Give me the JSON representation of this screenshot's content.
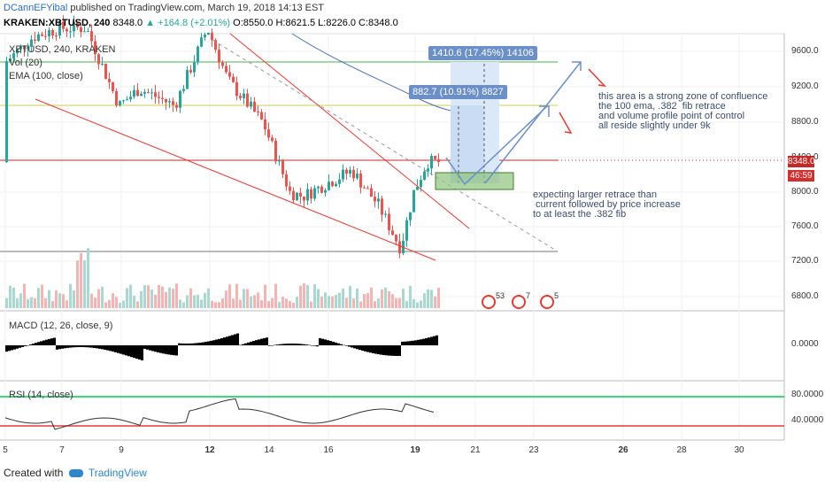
{
  "header": {
    "author": "DCannEFYibal",
    "published_text": "published on TradingView.com, March 19, 2018 14:13 EST",
    "symbol_line": "KRAKEN:XBTUSD, 240",
    "last": "8348.0",
    "change": "▲ +164.8 (+2.01%)",
    "ohlc": "O:8550.0 H:8621.5 L:8226.0 C:8348.0"
  },
  "panes": {
    "main_title": "XBTUSD, 240, KRAKEN",
    "vol_label": "Vol (20)",
    "ema_label": "EMA (100, close)",
    "macd_label": "MACD (12, 26, close, 9)",
    "rsi_label": "RSI (14, close)"
  },
  "price_axis": [
    "9600.0",
    "9200.0",
    "8800.0",
    "8400.0",
    "8000.0",
    "7600.0",
    "7200.0",
    "6800.0"
  ],
  "macd_axis": [
    "0.0000"
  ],
  "rsi_axis": [
    "80.0000",
    "40.0000"
  ],
  "last_price_tag": "8348.0",
  "countdown_tag": "46:59",
  "time_axis": [
    {
      "label": "5",
      "bold": false
    },
    {
      "label": "7",
      "bold": false
    },
    {
      "label": "9",
      "bold": false
    },
    {
      "label": "12",
      "bold": true
    },
    {
      "label": "14",
      "bold": false
    },
    {
      "label": "16",
      "bold": false
    },
    {
      "label": "19",
      "bold": true
    },
    {
      "label": "21",
      "bold": false
    },
    {
      "label": "23",
      "bold": false
    },
    {
      "label": "26",
      "bold": true
    },
    {
      "label": "28",
      "bold": false
    },
    {
      "label": "30",
      "bold": false
    }
  ],
  "annotations": {
    "box_high": "1410.6 (17.45%) 14106",
    "box_low": "882.7 (10.91%) 8827",
    "note_confluence": "this area is a strong zone of confluence\nthe 100 ema, .382  fib retrace\nand volume profile point of control\nall reside slightly under 9k",
    "note_retrace": "expecting larger retrace than\n current followed by price increase\nto at least the .382 fib"
  },
  "event_badges": [
    "53",
    "7",
    "5"
  ],
  "footer": {
    "created_with": "Created with",
    "brand": "TradingView"
  },
  "colors": {
    "up": "#26a69a",
    "down": "#ef5350",
    "hline_red": "#c62828",
    "hline_green": "#4caf50",
    "hline_olive": "#c9d14a",
    "ema": "#4a6fb5",
    "annot_blue": "#6b8fc7"
  }
}
